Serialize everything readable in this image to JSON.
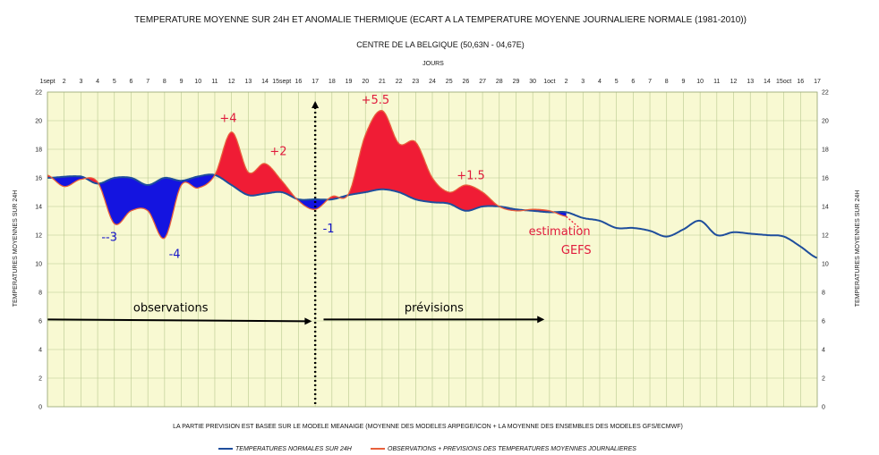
{
  "chart_data": {
    "type": "area",
    "title": "TEMPERATURE MOYENNE SUR 24H ET  ANOMALIE THERMIQUE (ECART A LA TEMPERATURE MOYENNE JOURNALIERE NORMALE (1981-2010))",
    "subtitle": "CENTRE DE LA BELGIQUE (50,63N - 04,67E)",
    "xlabel": "JOURS",
    "ylabel": "TEMPERATURES MOYENNES SUR 24H",
    "ylabel_right": "TEMPERATURES MOYENNES SUR 24H",
    "footnote": "LA PARTIE PREVISION EST BASEE SUR LE MODELE MEANAIGE (MOYENNE DES MODELES ARPEGE/ICON + LA MOYENNE DES ENSEMBLES DES MODELES GFS/ECMWF)",
    "ylim": [
      0,
      22
    ],
    "yticks": [
      0,
      2,
      4,
      6,
      8,
      10,
      12,
      14,
      16,
      18,
      20,
      22
    ],
    "xlim": [
      0,
      46
    ],
    "xtick_labels": [
      "1sept",
      "2",
      "3",
      "4",
      "5",
      "6",
      "7",
      "8",
      "9",
      "10",
      "11",
      "12",
      "13",
      "14",
      "15sept",
      "16",
      "17",
      "18",
      "19",
      "20",
      "21",
      "22",
      "23",
      "24",
      "25",
      "26",
      "27",
      "28",
      "29",
      "30",
      "1oct",
      "2",
      "3",
      "4",
      "5",
      "6",
      "7",
      "8",
      "9",
      "10",
      "11",
      "12",
      "13",
      "14",
      "15oct",
      "16",
      "17"
    ],
    "grid": true,
    "legend_position": "bottom",
    "colors": {
      "normal": "#1f4e9c",
      "observed": "#e8603c",
      "warm_fill": "#f01c35",
      "cold_fill": "#1414e0",
      "background": "#f8f9d2",
      "grid": "#b8c98f"
    },
    "series": [
      {
        "name": "TEMPERATURES NORMALES SUR 24H",
        "x": [
          0,
          2,
          3,
          4,
          5,
          6,
          7,
          8,
          9,
          10,
          11,
          12,
          13,
          14,
          15,
          16,
          17,
          18,
          19,
          20,
          21,
          22,
          23,
          24,
          25,
          26,
          27,
          28,
          29,
          30,
          31,
          32,
          33,
          34,
          35,
          36,
          37,
          38,
          39,
          40,
          41,
          42,
          43,
          44,
          45,
          46
        ],
        "values": [
          16.0,
          16.1,
          15.6,
          16.0,
          16.0,
          15.5,
          16.0,
          15.8,
          16.1,
          16.2,
          15.5,
          14.8,
          14.9,
          15.0,
          14.5,
          14.5,
          14.5,
          14.8,
          15.0,
          15.2,
          15.0,
          14.5,
          14.3,
          14.2,
          13.7,
          14.0,
          14.0,
          13.8,
          13.7,
          13.6,
          13.6,
          13.2,
          13.0,
          12.5,
          12.5,
          12.3,
          11.9,
          12.4,
          13.0,
          12.0,
          12.2,
          12.1,
          12.0,
          11.9,
          11.2,
          10.4
        ]
      },
      {
        "name": "OBSERVATIONS + PREVISIONS DES TEMPERATURES MOYENNES JOURNALIERES",
        "x": [
          0,
          1,
          2,
          3,
          4,
          5,
          6,
          7,
          8,
          9,
          10,
          11,
          12,
          13,
          14,
          15,
          16,
          17,
          18,
          19,
          20,
          21,
          22,
          23,
          24,
          25,
          26,
          27,
          28,
          29,
          30,
          31
        ],
        "values": [
          16.2,
          15.4,
          15.9,
          15.7,
          12.8,
          13.7,
          13.7,
          11.8,
          15.5,
          15.3,
          16.2,
          19.2,
          16.4,
          17.0,
          15.8,
          14.4,
          13.8,
          14.7,
          14.9,
          19.0,
          20.7,
          18.4,
          18.5,
          16.0,
          15.0,
          15.5,
          15.0,
          14.0,
          13.7,
          13.8,
          13.7,
          13.3
        ]
      }
    ],
    "observation_end_x": 16,
    "annotations": [
      {
        "text": "--3",
        "x": 3.7,
        "y": 11.6,
        "color": "blue"
      },
      {
        "text": "-4",
        "x": 7.6,
        "y": 10.4,
        "color": "blue"
      },
      {
        "text": "+4",
        "x": 10.8,
        "y": 19.9,
        "color": "red"
      },
      {
        "text": "+2",
        "x": 13.8,
        "y": 17.6,
        "color": "red"
      },
      {
        "text": "-1",
        "x": 16.8,
        "y": 12.2,
        "color": "blue"
      },
      {
        "text": "+5.5",
        "x": 19.6,
        "y": 21.2,
        "color": "red"
      },
      {
        "text": "+1.5",
        "x": 25.3,
        "y": 15.9,
        "color": "red"
      },
      {
        "text": "estimation",
        "x": 30.6,
        "y": 12.0,
        "color": "red"
      },
      {
        "text": "GEFS",
        "x": 31.6,
        "y": 10.7,
        "color": "red"
      }
    ],
    "arrows": [
      {
        "label": "observations",
        "x_start": 0,
        "x_end": 15.8,
        "y": 6.1
      },
      {
        "label": "prévisions",
        "x_start": 16.5,
        "x_end": 29.7,
        "y": 6.1
      }
    ]
  }
}
